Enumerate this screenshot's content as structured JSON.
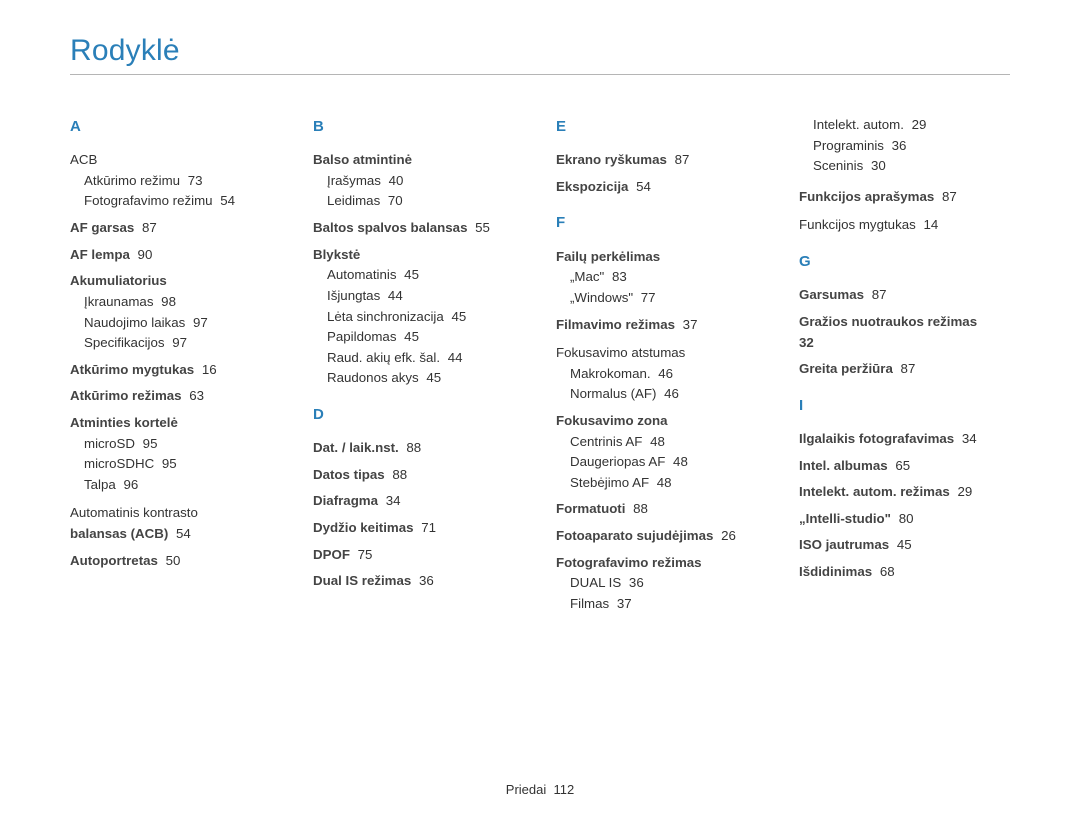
{
  "title": "Rodyklė",
  "footer": {
    "label": "Priedai",
    "page": "112"
  },
  "colors": {
    "accent": "#2a7fb8",
    "text": "#333333",
    "rule": "#b5b5b5",
    "background": "#ffffff"
  },
  "typography": {
    "title_fontsize": 30,
    "letter_fontsize": 15,
    "body_fontsize": 13.3,
    "line_height": 1.55
  },
  "columns": [
    {
      "groups": [
        {
          "letter": "A",
          "first": true,
          "items": [
            {
              "t": "group",
              "label": "ACB",
              "bold": false,
              "subs": [
                {
                  "label": "Atkūrimo režimu",
                  "pg": "73"
                },
                {
                  "label": "Fotografavimo režimu",
                  "pg": "54"
                }
              ]
            },
            {
              "t": "line",
              "label": "AF garsas",
              "pg": "87",
              "bold": true
            },
            {
              "t": "line",
              "label": "AF lempa",
              "pg": "90",
              "bold": true
            },
            {
              "t": "group",
              "label": "Akumuliatorius",
              "bold": true,
              "subs": [
                {
                  "label": "Įkraunamas",
                  "pg": "98"
                },
                {
                  "label": "Naudojimo laikas",
                  "pg": "97"
                },
                {
                  "label": "Specifikacijos",
                  "pg": "97"
                }
              ]
            },
            {
              "t": "line",
              "label": "Atkūrimo mygtukas",
              "pg": "16",
              "bold": true
            },
            {
              "t": "line",
              "label": "Atkūrimo režimas",
              "pg": "63",
              "bold": true
            },
            {
              "t": "group",
              "label": "Atminties kortelė",
              "bold": true,
              "subs": [
                {
                  "label": "microSD",
                  "pg": "95"
                },
                {
                  "label": "microSDHC",
                  "pg": "95"
                },
                {
                  "label": "Talpa",
                  "pg": "96"
                }
              ]
            },
            {
              "t": "two",
              "first": "Automatinis kontrasto",
              "second": "balansas (ACB)",
              "pg": "54"
            },
            {
              "t": "line",
              "label": "Autoportretas",
              "pg": "50",
              "bold": true
            }
          ]
        }
      ]
    },
    {
      "groups": [
        {
          "letter": "B",
          "first": true,
          "items": [
            {
              "t": "group",
              "label": "Balso atmintinė",
              "bold": true,
              "subs": [
                {
                  "label": "Įrašymas",
                  "pg": "40"
                },
                {
                  "label": "Leidimas",
                  "pg": "70"
                }
              ]
            },
            {
              "t": "line",
              "label": "Baltos spalvos balansas",
              "pg": "55",
              "bold": true
            },
            {
              "t": "group",
              "label": "Blykstė",
              "bold": true,
              "subs": [
                {
                  "label": "Automatinis",
                  "pg": "45"
                },
                {
                  "label": "Išjungtas",
                  "pg": "44"
                },
                {
                  "label": "Lėta sinchronizacija",
                  "pg": "45"
                },
                {
                  "label": "Papildomas",
                  "pg": "45"
                },
                {
                  "label": "Raud. akių efk. šal.",
                  "pg": "44"
                },
                {
                  "label": "Raudonos akys",
                  "pg": "45"
                }
              ]
            }
          ]
        },
        {
          "letter": "D",
          "items": [
            {
              "t": "line",
              "label": "Dat. / laik.nst.",
              "pg": "88",
              "bold": true
            },
            {
              "t": "line",
              "label": "Datos tipas",
              "pg": "88",
              "bold": true
            },
            {
              "t": "line",
              "label": "Diafragma",
              "pg": "34",
              "bold": true
            },
            {
              "t": "line",
              "label": "Dydžio keitimas",
              "pg": "71",
              "bold": true
            },
            {
              "t": "line",
              "label": "DPOF",
              "pg": "75",
              "bold": true
            },
            {
              "t": "line",
              "label": "Dual IS režimas",
              "pg": "36",
              "bold": true
            }
          ]
        }
      ]
    },
    {
      "groups": [
        {
          "letter": "E",
          "first": true,
          "items": [
            {
              "t": "line",
              "label": "Ekrano ryškumas",
              "pg": "87",
              "bold": true
            },
            {
              "t": "line",
              "label": "Ekspozicija",
              "pg": "54",
              "bold": true
            }
          ]
        },
        {
          "letter": "F",
          "items": [
            {
              "t": "group",
              "label": "Failų perkėlimas",
              "bold": true,
              "subs": [
                {
                  "label": "„Mac\"",
                  "pg": "83"
                },
                {
                  "label": "„Windows\"",
                  "pg": "77"
                }
              ]
            },
            {
              "t": "line",
              "label": "Filmavimo režimas",
              "pg": "37",
              "bold": true
            },
            {
              "t": "group",
              "label": "Fokusavimo atstumas",
              "bold": false,
              "subs": [
                {
                  "label": "Makrokoman.",
                  "pg": "46"
                },
                {
                  "label": "Normalus (AF)",
                  "pg": "46"
                }
              ]
            },
            {
              "t": "group",
              "label": "Fokusavimo zona",
              "bold": true,
              "subs": [
                {
                  "label": "Centrinis AF",
                  "pg": "48"
                },
                {
                  "label": "Daugeriopas AF",
                  "pg": "48"
                },
                {
                  "label": "Stebėjimo AF",
                  "pg": "48"
                }
              ]
            },
            {
              "t": "line",
              "label": "Formatuoti",
              "pg": "88",
              "bold": true
            },
            {
              "t": "line",
              "label": "Fotoaparato sujudėjimas",
              "pg": "26",
              "bold": true
            },
            {
              "t": "group",
              "label": "Fotografavimo režimas",
              "bold": true,
              "subs": [
                {
                  "label": "DUAL IS",
                  "pg": "36"
                },
                {
                  "label": "Filmas",
                  "pg": "37"
                }
              ]
            }
          ]
        }
      ]
    },
    {
      "groups": [
        {
          "letter": "",
          "first": true,
          "items": [
            {
              "t": "sub",
              "label": "Intelekt. autom.",
              "pg": "29"
            },
            {
              "t": "sub",
              "label": "Programinis",
              "pg": "36"
            },
            {
              "t": "sub",
              "label": "Sceninis",
              "pg": "30"
            },
            {
              "t": "line",
              "label": "Funkcijos aprašymas",
              "pg": "87",
              "bold": true,
              "gap": true
            },
            {
              "t": "line",
              "label": "Funkcijos mygtukas",
              "pg": "14",
              "bold": false
            }
          ]
        },
        {
          "letter": "G",
          "items": [
            {
              "t": "line",
              "label": "Garsumas",
              "pg": "87",
              "bold": true
            },
            {
              "t": "two",
              "first": "Gražios nuotraukos režimas",
              "second": "32",
              "bold": true
            },
            {
              "t": "line",
              "label": "Greita peržiūra",
              "pg": "87",
              "bold": true
            }
          ]
        },
        {
          "letter": "I",
          "items": [
            {
              "t": "line",
              "label": "Ilgalaikis fotografavimas",
              "pg": "34",
              "bold": true
            },
            {
              "t": "line",
              "label": "Intel. albumas",
              "pg": "65",
              "bold": true
            },
            {
              "t": "line",
              "label": "Intelekt. autom. režimas",
              "pg": "29",
              "bold": true
            },
            {
              "t": "line",
              "label": "„Intelli-studio\"",
              "pg": "80",
              "bold": true
            },
            {
              "t": "line",
              "label": "ISO jautrumas",
              "pg": "45",
              "bold": true
            },
            {
              "t": "line",
              "label": "Išdidinimas",
              "pg": "68",
              "bold": true
            }
          ]
        }
      ]
    }
  ]
}
